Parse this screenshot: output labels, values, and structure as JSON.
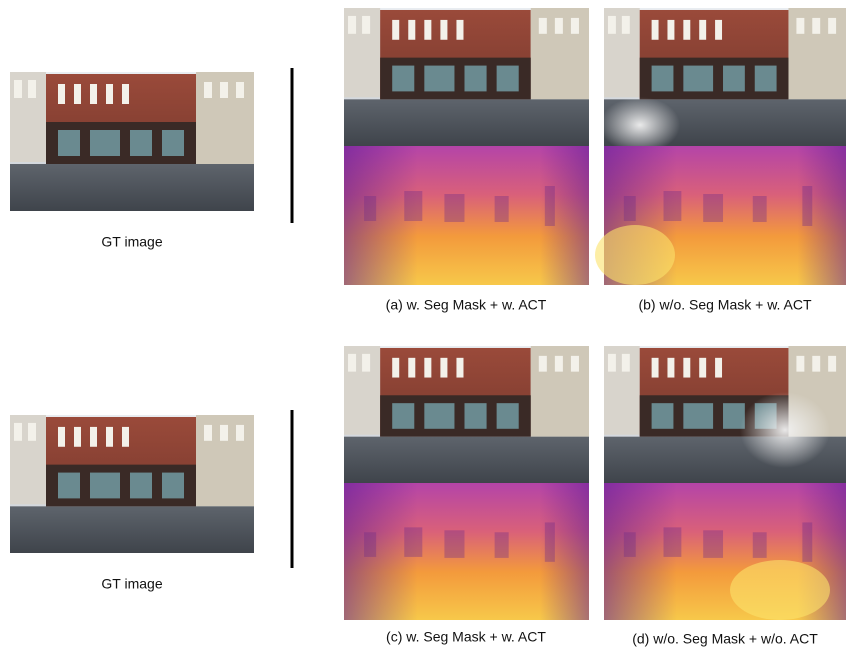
{
  "figure": {
    "rows": [
      {
        "gt_label": "GT image",
        "captions": [
          "(a) w. Seg Mask + w. ACT",
          "(b) w/o. Seg Mask + w. ACT"
        ]
      },
      {
        "gt_label": "GT image",
        "captions": [
          "(c) w. Seg Mask + w. ACT",
          "(d) w/o. Seg Mask + w/o. ACT"
        ]
      }
    ]
  }
}
